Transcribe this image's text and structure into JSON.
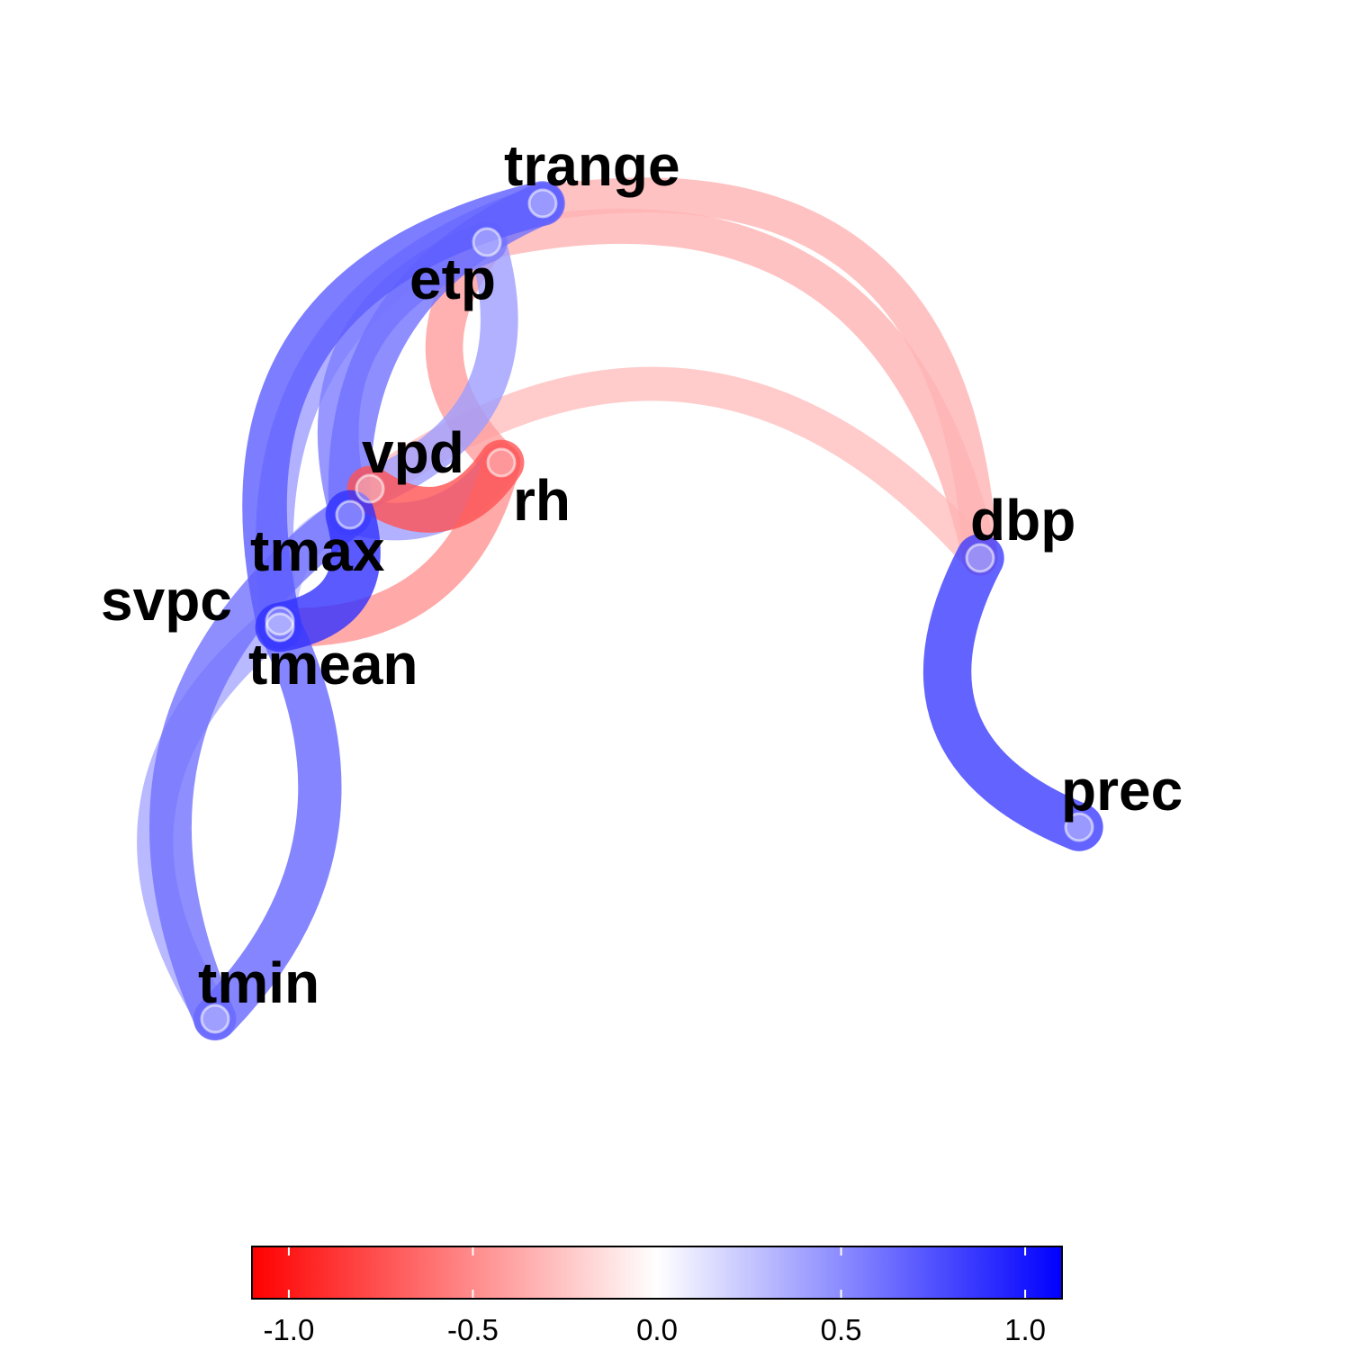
{
  "chart_data": {
    "type": "network",
    "nodes": [
      {
        "id": "trange",
        "label": "trange"
      },
      {
        "id": "etp",
        "label": "etp"
      },
      {
        "id": "vpd",
        "label": "vpd"
      },
      {
        "id": "rh",
        "label": "rh"
      },
      {
        "id": "tmax",
        "label": "tmax"
      },
      {
        "id": "svpc",
        "label": "svpc"
      },
      {
        "id": "tmean",
        "label": "tmean"
      },
      {
        "id": "tmin",
        "label": "tmin"
      },
      {
        "id": "dbp",
        "label": "dbp"
      },
      {
        "id": "prec",
        "label": "prec"
      }
    ],
    "edges": [
      {
        "from": "trange",
        "to": "dbp",
        "value": -0.35
      },
      {
        "from": "etp",
        "to": "dbp",
        "value": -0.35
      },
      {
        "from": "vpd",
        "to": "dbp",
        "value": -0.3
      },
      {
        "from": "dbp",
        "to": "prec",
        "value": 0.9
      },
      {
        "from": "trange",
        "to": "tmean",
        "value": 0.75
      },
      {
        "from": "trange",
        "to": "svpc",
        "value": 0.45
      },
      {
        "from": "trange",
        "to": "tmax",
        "value": 0.65
      },
      {
        "from": "etp",
        "to": "rh",
        "value": -0.45
      },
      {
        "from": "etp",
        "to": "tmax",
        "value": 0.6
      },
      {
        "from": "etp",
        "to": "vpd",
        "value": 0.45
      },
      {
        "from": "vpd",
        "to": "rh",
        "value": -0.8
      },
      {
        "from": "rh",
        "to": "tmean",
        "value": -0.5
      },
      {
        "from": "rh",
        "to": "tmax",
        "value": 0.45
      },
      {
        "from": "tmax",
        "to": "tmean",
        "value": 0.95
      },
      {
        "from": "tmax",
        "to": "svpc",
        "value": 0.3
      },
      {
        "from": "tmean",
        "to": "tmin",
        "value": 0.7
      },
      {
        "from": "svpc",
        "to": "tmin",
        "value": 0.4
      },
      {
        "from": "tmin",
        "to": "tmax",
        "value": 0.65
      }
    ],
    "colorbar": {
      "range": [
        -1.1,
        1.1
      ],
      "ticks": [
        -1.0,
        -0.5,
        0.0,
        0.5,
        1.0
      ],
      "tick_labels": [
        "-1.0",
        "-0.5",
        "0.0",
        "0.5",
        "1.0"
      ],
      "low_color": "#ff0000",
      "mid_color": "#ffffff",
      "high_color": "#0000ff"
    }
  }
}
